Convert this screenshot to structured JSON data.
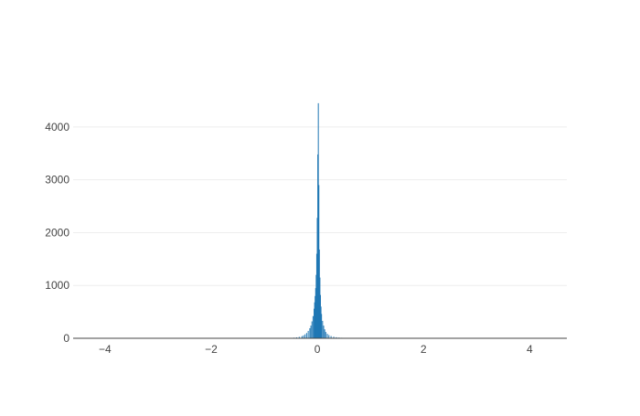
{
  "chart_data": {
    "type": "bar",
    "subtype": "histogram",
    "title": "",
    "xlabel": "",
    "ylabel": "",
    "xlim": [
      -4.6,
      4.7
    ],
    "ylim": [
      0,
      4500
    ],
    "x_ticks": [
      -4,
      -2,
      0,
      2,
      4
    ],
    "x_tick_labels": [
      "−4",
      "−2",
      "0",
      "2",
      "4"
    ],
    "y_ticks": [
      0,
      1000,
      2000,
      3000,
      4000
    ],
    "y_tick_labels": [
      "0",
      "1000",
      "2000",
      "3000",
      "4000"
    ],
    "grid": "horizontal",
    "legend": "none",
    "bar_color": "#1f77b4",
    "bin_width": 0.01,
    "bins": [
      {
        "x": -0.6,
        "value": 3
      },
      {
        "x": -0.55,
        "value": 5
      },
      {
        "x": -0.5,
        "value": 8
      },
      {
        "x": -0.45,
        "value": 12
      },
      {
        "x": -0.4,
        "value": 18
      },
      {
        "x": -0.35,
        "value": 28
      },
      {
        "x": -0.3,
        "value": 40
      },
      {
        "x": -0.27,
        "value": 55
      },
      {
        "x": -0.24,
        "value": 75
      },
      {
        "x": -0.21,
        "value": 100
      },
      {
        "x": -0.18,
        "value": 140
      },
      {
        "x": -0.15,
        "value": 190
      },
      {
        "x": -0.13,
        "value": 240
      },
      {
        "x": -0.11,
        "value": 320
      },
      {
        "x": -0.09,
        "value": 420
      },
      {
        "x": -0.07,
        "value": 560
      },
      {
        "x": -0.06,
        "value": 680
      },
      {
        "x": -0.05,
        "value": 800
      },
      {
        "x": -0.04,
        "value": 950
      },
      {
        "x": -0.03,
        "value": 1200
      },
      {
        "x": -0.02,
        "value": 1600
      },
      {
        "x": -0.01,
        "value": 2280
      },
      {
        "x": 0.0,
        "value": 3480
      },
      {
        "x": 0.01,
        "value": 4450
      },
      {
        "x": 0.02,
        "value": 2900
      },
      {
        "x": 0.03,
        "value": 1680
      },
      {
        "x": 0.04,
        "value": 1150
      },
      {
        "x": 0.05,
        "value": 820
      },
      {
        "x": 0.06,
        "value": 600
      },
      {
        "x": 0.07,
        "value": 460
      },
      {
        "x": 0.09,
        "value": 330
      },
      {
        "x": 0.11,
        "value": 240
      },
      {
        "x": 0.13,
        "value": 170
      },
      {
        "x": 0.15,
        "value": 120
      },
      {
        "x": 0.18,
        "value": 85
      },
      {
        "x": 0.21,
        "value": 60
      },
      {
        "x": 0.25,
        "value": 42
      },
      {
        "x": 0.3,
        "value": 30
      },
      {
        "x": 0.35,
        "value": 20
      },
      {
        "x": 0.4,
        "value": 14
      },
      {
        "x": 0.45,
        "value": 10
      },
      {
        "x": 0.5,
        "value": 7
      },
      {
        "x": 0.6,
        "value": 5
      },
      {
        "x": 0.7,
        "value": 3
      },
      {
        "x": 0.8,
        "value": 2
      }
    ]
  }
}
